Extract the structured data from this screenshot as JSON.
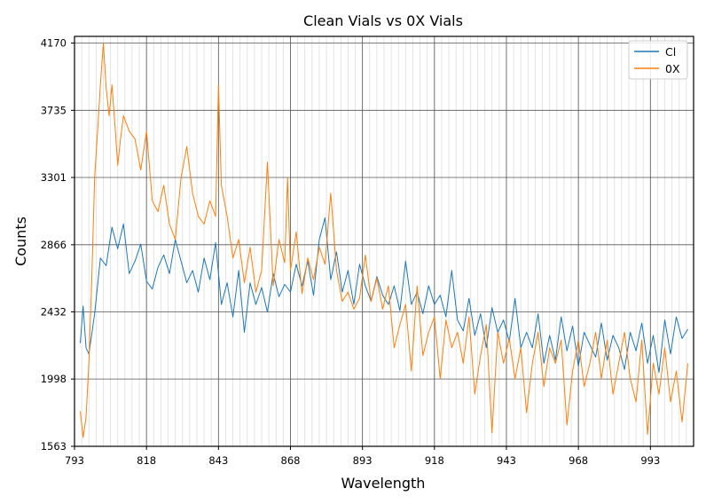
{
  "chart_data": {
    "type": "line",
    "title": "Clean Vials vs 0X Vials",
    "xlabel": "Wavelength",
    "ylabel": "Counts",
    "xlim": [
      793,
      1008
    ],
    "ylim": [
      1563,
      4213
    ],
    "x_ticks": [
      793,
      818,
      843,
      868,
      893,
      918,
      943,
      968,
      993
    ],
    "x_tick_labels": [
      "793",
      "818",
      "843",
      "868",
      "893",
      "918",
      "943",
      "968",
      "993"
    ],
    "y_ticks": [
      1563,
      1998,
      2432,
      2866,
      3301,
      3735,
      4170
    ],
    "y_tick_labels": [
      "1563",
      "1998",
      "2432",
      "2866",
      "3301",
      "3735",
      "4170"
    ],
    "x_minor_step": 2.5,
    "grid": true,
    "legend_position": "top-right",
    "series": [
      {
        "name": "Cl",
        "color": "#1f77b4",
        "x": [
          795,
          796,
          797,
          798,
          799,
          800,
          802,
          804,
          806,
          808,
          810,
          812,
          814,
          816,
          818,
          820,
          822,
          824,
          826,
          828,
          830,
          832,
          834,
          836,
          838,
          840,
          842,
          844,
          846,
          848,
          850,
          852,
          854,
          856,
          858,
          860,
          862,
          864,
          866,
          868,
          870,
          872,
          874,
          876,
          878,
          880,
          882,
          884,
          886,
          888,
          890,
          892,
          894,
          896,
          898,
          900,
          902,
          904,
          906,
          908,
          910,
          912,
          914,
          916,
          918,
          920,
          922,
          924,
          926,
          928,
          930,
          932,
          934,
          936,
          938,
          940,
          942,
          944,
          946,
          948,
          950,
          952,
          954,
          956,
          958,
          960,
          962,
          964,
          966,
          968,
          970,
          972,
          974,
          976,
          978,
          980,
          982,
          984,
          986,
          988,
          990,
          992,
          994,
          996,
          998,
          1000,
          1002,
          1004,
          1006
        ],
        "y": [
          2230,
          2470,
          2200,
          2160,
          2290,
          2420,
          2780,
          2730,
          2980,
          2840,
          3000,
          2680,
          2760,
          2870,
          2630,
          2580,
          2720,
          2800,
          2680,
          2900,
          2760,
          2620,
          2700,
          2560,
          2780,
          2640,
          2880,
          2480,
          2620,
          2400,
          2700,
          2300,
          2620,
          2480,
          2590,
          2430,
          2680,
          2530,
          2610,
          2560,
          2740,
          2600,
          2760,
          2540,
          2900,
          3040,
          2640,
          2820,
          2560,
          2700,
          2480,
          2740,
          2600,
          2500,
          2660,
          2540,
          2480,
          2600,
          2440,
          2760,
          2480,
          2560,
          2420,
          2600,
          2480,
          2540,
          2400,
          2700,
          2380,
          2310,
          2520,
          2280,
          2420,
          2200,
          2460,
          2300,
          2380,
          2240,
          2520,
          2200,
          2300,
          2200,
          2420,
          2100,
          2280,
          2120,
          2400,
          2180,
          2340,
          2080,
          2300,
          2220,
          2140,
          2360,
          2120,
          2280,
          2200,
          2060,
          2300,
          2180,
          2360,
          2100,
          2280,
          2040,
          2380,
          2160,
          2400,
          2260,
          2320
        ]
      },
      {
        "name": "0X",
        "color": "#ff7f0e",
        "x": [
          795,
          796,
          797,
          798,
          799,
          800,
          801,
          802,
          803,
          804,
          805,
          806,
          807,
          808,
          809,
          810,
          812,
          814,
          816,
          818,
          820,
          822,
          824,
          826,
          828,
          830,
          832,
          834,
          836,
          838,
          840,
          842,
          843,
          844,
          846,
          848,
          850,
          852,
          854,
          856,
          858,
          860,
          862,
          864,
          866,
          867,
          868,
          870,
          872,
          874,
          876,
          878,
          880,
          882,
          884,
          886,
          888,
          890,
          892,
          894,
          896,
          898,
          900,
          902,
          904,
          906,
          908,
          910,
          912,
          914,
          916,
          918,
          920,
          922,
          924,
          926,
          928,
          930,
          932,
          934,
          936,
          938,
          940,
          942,
          944,
          946,
          948,
          950,
          952,
          954,
          956,
          958,
          960,
          962,
          964,
          966,
          968,
          970,
          972,
          974,
          976,
          978,
          980,
          982,
          984,
          986,
          988,
          990,
          992,
          994,
          996,
          998,
          1000,
          1002,
          1004,
          1006
        ],
        "y": [
          1790,
          1620,
          1750,
          2100,
          2650,
          3300,
          3600,
          3900,
          4170,
          3880,
          3700,
          3900,
          3650,
          3380,
          3550,
          3700,
          3600,
          3550,
          3350,
          3600,
          3150,
          3080,
          3250,
          3000,
          2900,
          3300,
          3500,
          3200,
          3050,
          3000,
          3150,
          3050,
          3900,
          3250,
          3050,
          2780,
          2900,
          2620,
          2850,
          2560,
          2700,
          3400,
          2600,
          2900,
          2750,
          3300,
          2700,
          2950,
          2550,
          2780,
          2640,
          2850,
          2740,
          3200,
          2700,
          2500,
          2560,
          2450,
          2520,
          2800,
          2500,
          2650,
          2450,
          2600,
          2200,
          2350,
          2480,
          2050,
          2600,
          2150,
          2300,
          2400,
          2000,
          2380,
          2200,
          2300,
          2100,
          2400,
          1900,
          2150,
          2350,
          1650,
          2300,
          2100,
          2260,
          2000,
          2200,
          1780,
          2100,
          2300,
          1950,
          2200,
          2100,
          2250,
          1700,
          2050,
          2250,
          1950,
          2100,
          2300,
          2000,
          2250,
          1900,
          2100,
          2300,
          2000,
          1850,
          2250,
          1640,
          2100,
          1900,
          2200,
          1850,
          2050,
          1720,
          2100
        ]
      }
    ]
  }
}
